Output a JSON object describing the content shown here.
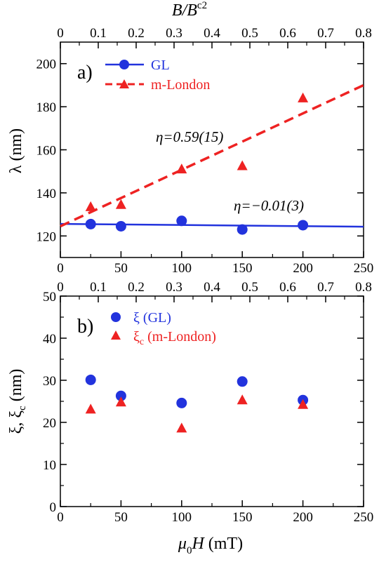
{
  "colors": {
    "gl": "#2233dd",
    "london": "#ee2222",
    "axis": "#000000"
  },
  "chart_data": [
    {
      "type": "scatter",
      "panel_label": "a)",
      "xlabel": "",
      "ylabel": "λ (nm)",
      "xlim": [
        0,
        250
      ],
      "ylim": [
        110,
        210
      ],
      "x_ticks": [
        0,
        50,
        100,
        150,
        200,
        250
      ],
      "y_ticks": [
        120,
        140,
        160,
        180,
        200
      ],
      "top_axis": {
        "label_main": "B/B",
        "label_sub": "c2",
        "lim": [
          0,
          0.8
        ],
        "ticks": [
          "0",
          "0.1",
          "0.2",
          "0.3",
          "0.4",
          "0.5",
          "0.6",
          "0.7",
          "0.8"
        ]
      },
      "series": [
        {
          "name": "GL",
          "marker": "circle",
          "color": "#2233dd",
          "x": [
            25,
            50,
            100,
            150,
            200
          ],
          "y": [
            125.5,
            124.5,
            127,
            123,
            125
          ],
          "fit": {
            "style": "solid",
            "x": [
              0,
              250
            ],
            "y": [
              125.6,
              124.3
            ]
          }
        },
        {
          "name": "m-London",
          "marker": "triangle",
          "color": "#ee2222",
          "x": [
            25,
            50,
            100,
            150,
            200
          ],
          "y": [
            133.5,
            134.5,
            151,
            152.5,
            184
          ],
          "fit": {
            "style": "dashed",
            "x": [
              0,
              250
            ],
            "y": [
              124.5,
              190
            ]
          }
        }
      ],
      "annotations": [
        {
          "text": "η=0.59(15)"
        },
        {
          "text": "η=−0.01(3)"
        }
      ]
    },
    {
      "type": "scatter",
      "panel_label": "b)",
      "xlabel_main": "μ",
      "xlabel_sub": "0",
      "xlabel_rest": "H (mT)",
      "ylabel_main": "ξ, ξ",
      "ylabel_sub": "c",
      "ylabel_rest": " (nm)",
      "xlim": [
        0,
        250
      ],
      "ylim": [
        0,
        50
      ],
      "x_ticks": [
        0,
        50,
        100,
        150,
        200,
        250
      ],
      "y_ticks": [
        0,
        10,
        20,
        30,
        40,
        50
      ],
      "top_axis": {
        "lim": [
          0,
          0.8
        ],
        "ticks": [
          "0",
          "0.1",
          "0.2",
          "0.3",
          "0.4",
          "0.5",
          "0.6",
          "0.7",
          "0.8"
        ]
      },
      "series": [
        {
          "name": "ξ (GL)",
          "marker": "circle",
          "color": "#2233dd",
          "x": [
            25,
            50,
            100,
            150,
            200
          ],
          "y": [
            30.1,
            26.3,
            24.6,
            29.7,
            25.3
          ]
        },
        {
          "name_main": "ξ",
          "name_sub": "c",
          "name_rest": " (m-London)",
          "marker": "triangle",
          "color": "#ee2222",
          "x": [
            25,
            50,
            100,
            150,
            200
          ],
          "y": [
            23.1,
            24.8,
            18.6,
            25.3,
            24.2
          ]
        }
      ]
    }
  ]
}
